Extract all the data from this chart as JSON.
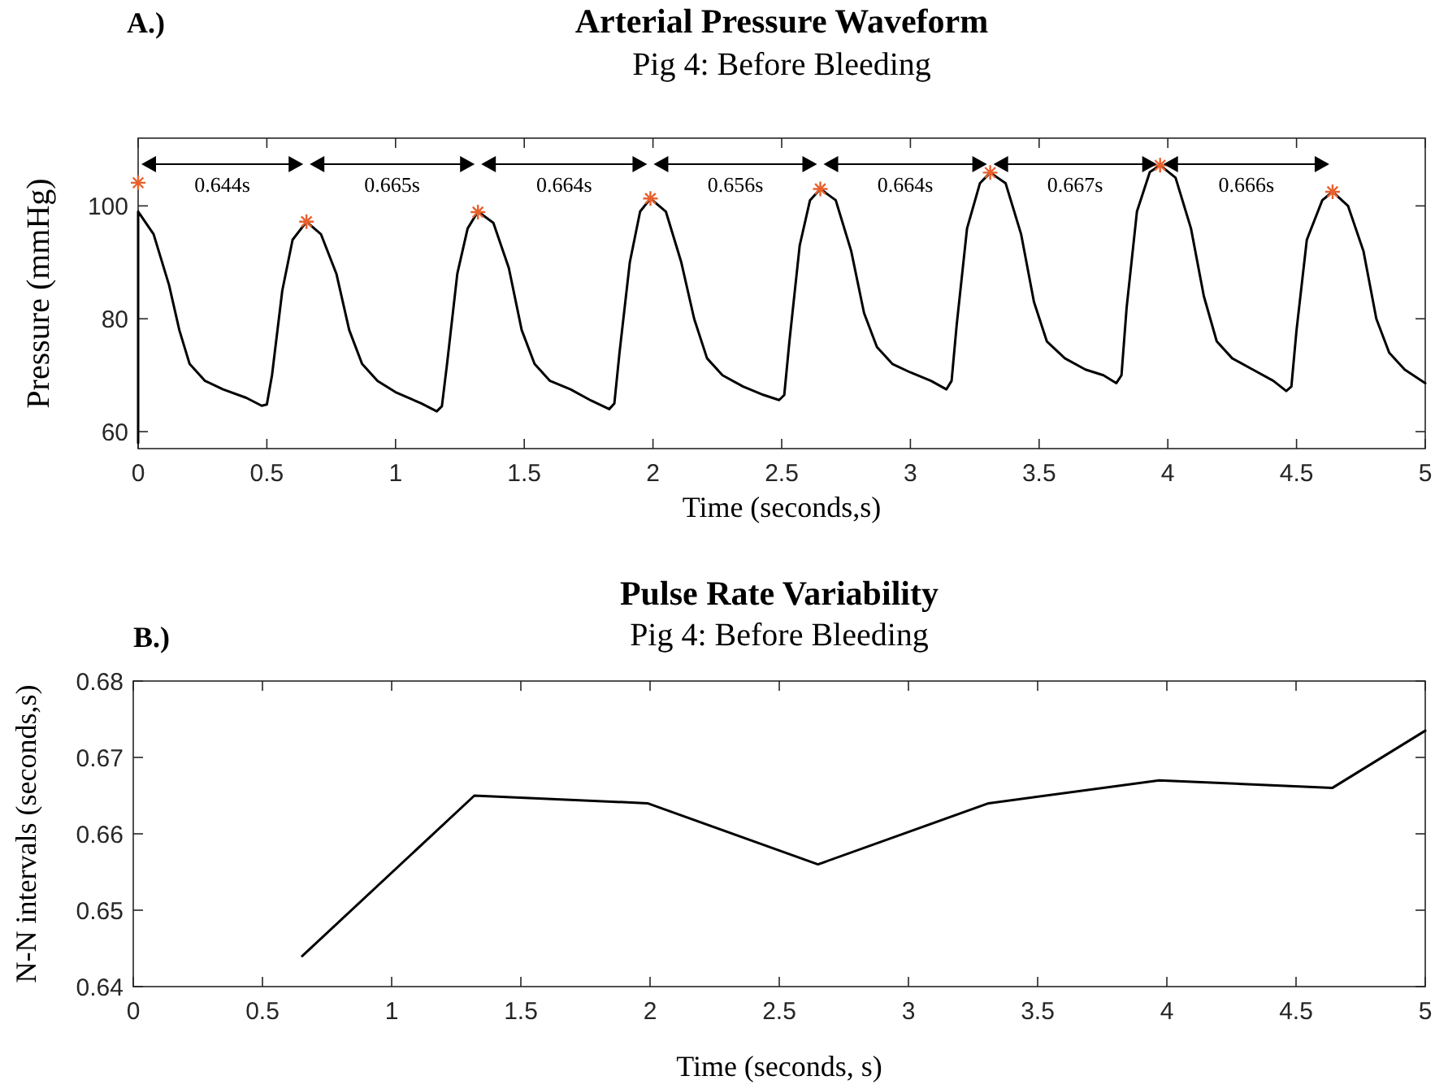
{
  "chart_data": [
    {
      "type": "line",
      "title": "Arterial Pressure Waveform",
      "subtitle": "Pig 4: Before Bleeding",
      "xlabel": "Time (seconds,s)",
      "ylabel": "Pressure (mmHg)",
      "xlim": [
        0,
        5
      ],
      "ylim": [
        57,
        112
      ],
      "xticks": [
        0,
        0.5,
        1,
        1.5,
        2,
        2.5,
        3,
        3.5,
        4,
        4.5,
        5
      ],
      "yticks": [
        60,
        80,
        100
      ],
      "grid": false,
      "series": [
        {
          "color": "#000000",
          "marker": "none",
          "x": [
            0,
            0,
            0.06,
            0.12,
            0.16,
            0.2,
            0.26,
            0.33,
            0.42,
            0.48,
            0.5,
            0.52,
            0.56,
            0.6,
            0.654,
            0.71,
            0.77,
            0.82,
            0.87,
            0.93,
            1.0,
            1.1,
            1.16,
            1.18,
            1.2,
            1.24,
            1.28,
            1.32,
            1.38,
            1.44,
            1.49,
            1.54,
            1.6,
            1.68,
            1.76,
            1.83,
            1.85,
            1.87,
            1.91,
            1.95,
            1.99,
            2.05,
            2.11,
            2.16,
            2.21,
            2.27,
            2.35,
            2.43,
            2.49,
            2.51,
            2.53,
            2.57,
            2.61,
            2.65,
            2.71,
            2.77,
            2.82,
            2.87,
            2.93,
            3.0,
            3.08,
            3.14,
            3.16,
            3.18,
            3.22,
            3.27,
            3.31,
            3.37,
            3.43,
            3.48,
            3.53,
            3.6,
            3.68,
            3.75,
            3.8,
            3.82,
            3.84,
            3.88,
            3.93,
            3.97,
            4.03,
            4.09,
            4.14,
            4.19,
            4.25,
            4.33,
            4.41,
            4.46,
            4.48,
            4.5,
            4.54,
            4.6,
            4.64,
            4.7,
            4.76,
            4.81,
            4.86,
            4.92,
            5.0
          ],
          "values": [
            58,
            99,
            95,
            86,
            78,
            72,
            69,
            67.5,
            66,
            64.6,
            64.8,
            70,
            85,
            94,
            97.2,
            95,
            88,
            78,
            72,
            69,
            67,
            65,
            63.6,
            64.5,
            72,
            88,
            96,
            99,
            97,
            89,
            78,
            72,
            69,
            67.5,
            65.5,
            64,
            65,
            74,
            90,
            99,
            101.3,
            99,
            90,
            80,
            73,
            70,
            68,
            66.5,
            65.6,
            66.5,
            76,
            93,
            101,
            103,
            101,
            92,
            81,
            75,
            72,
            70.5,
            69,
            67.5,
            69,
            79,
            96,
            104,
            105.9,
            104,
            95,
            83,
            76,
            73,
            71,
            70,
            68.6,
            70,
            82,
            99,
            106,
            107.2,
            105,
            96,
            84,
            76,
            73,
            71,
            69,
            67.2,
            68,
            78,
            94,
            101,
            102.5,
            100,
            92,
            80,
            74,
            71,
            68.6
          ]
        },
        {
          "type": "scatter",
          "color": "#e8602c",
          "marker": "cross",
          "x": [
            0,
            0.654,
            1.32,
            1.99,
            2.65,
            3.31,
            3.97,
            4.64
          ],
          "values": [
            104.1,
            97.2,
            98.9,
            101.3,
            103,
            105.9,
            107.2,
            102.5
          ]
        }
      ],
      "annotations": [
        "A.)",
        "0.644s",
        "0.665s",
        "0.664s",
        "0.656s",
        "0.664s",
        "0.667s",
        "0.666s"
      ]
    },
    {
      "type": "line",
      "title": "Pulse Rate Variability",
      "subtitle": "Pig 4: Before Bleeding",
      "xlabel": "Time (seconds, s)",
      "ylabel": "N-N intervals (seconds,s)",
      "xlim": [
        0,
        5
      ],
      "ylim": [
        0.64,
        0.68
      ],
      "xticks": [
        0,
        0.5,
        1,
        1.5,
        2,
        2.5,
        3,
        3.5,
        4,
        4.5,
        5
      ],
      "yticks": [
        0.64,
        0.65,
        0.66,
        0.67,
        0.68
      ],
      "grid": false,
      "series": [
        {
          "color": "#000000",
          "marker": "none",
          "x": [
            0.654,
            1.32,
            1.99,
            2.65,
            3.31,
            3.97,
            4.64,
            5.0
          ],
          "values": [
            0.644,
            0.665,
            0.664,
            0.656,
            0.664,
            0.667,
            0.666,
            0.6735
          ]
        }
      ],
      "annotations": [
        "B.)"
      ]
    }
  ]
}
